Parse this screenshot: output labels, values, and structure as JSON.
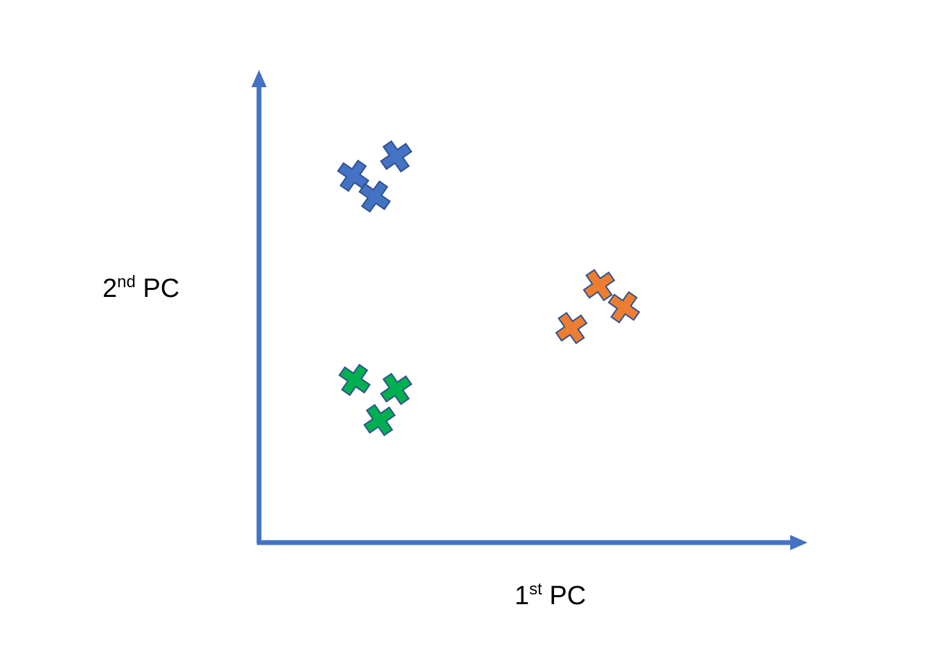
{
  "axes": {
    "y_label": {
      "main": "2",
      "sup": "nd",
      "rest": " PC"
    },
    "x_label": {
      "main": "1",
      "sup": "st",
      "rest": " PC"
    },
    "axis_color": "#4472C4"
  },
  "clusters": [
    {
      "name": "blue",
      "color": "#4472C4",
      "stroke": "#2F528F",
      "point_count": 3
    },
    {
      "name": "orange",
      "color": "#ED7D31",
      "stroke": "#2F528F",
      "point_count": 3
    },
    {
      "name": "green",
      "color": "#00B050",
      "stroke": "#2F528F",
      "point_count": 3
    }
  ]
}
